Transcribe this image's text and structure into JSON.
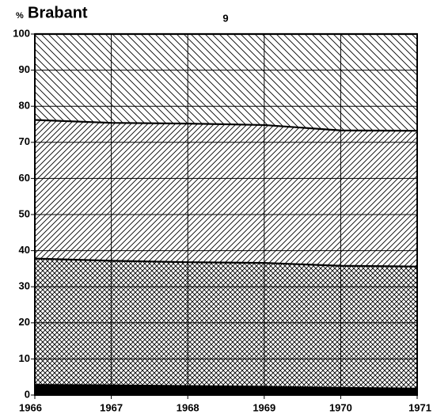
{
  "chart_data": {
    "type": "stacked_area",
    "title": "Brabant",
    "y_label": "%",
    "figure_number": "9",
    "x": [
      1966,
      1967,
      1968,
      1969,
      1970,
      1971
    ],
    "series": [
      {
        "color": "#000000",
        "pattern": "solid",
        "values": [
          2.8,
          2.7,
          2.5,
          2.3,
          2.0,
          1.8
        ]
      },
      {
        "color": "#000000",
        "pattern": "crosshatch",
        "values": [
          35.0,
          34.5,
          34.3,
          34.3,
          33.8,
          33.8
        ]
      },
      {
        "color": "#000000",
        "pattern": "slash",
        "values": [
          38.4,
          38.2,
          38.4,
          38.2,
          37.5,
          37.6
        ]
      },
      {
        "color": "#000000",
        "pattern": "backslash",
        "values": [
          23.8,
          24.6,
          24.8,
          25.2,
          26.7,
          26.8
        ]
      }
    ],
    "xlim": [
      1966,
      1971
    ],
    "xticks": [
      1966,
      1967,
      1968,
      1969,
      1970,
      1971
    ],
    "ylim": [
      0,
      100
    ],
    "yticks": [
      0,
      10,
      20,
      30,
      40,
      50,
      60,
      70,
      80,
      90,
      100
    ],
    "grid": true
  }
}
